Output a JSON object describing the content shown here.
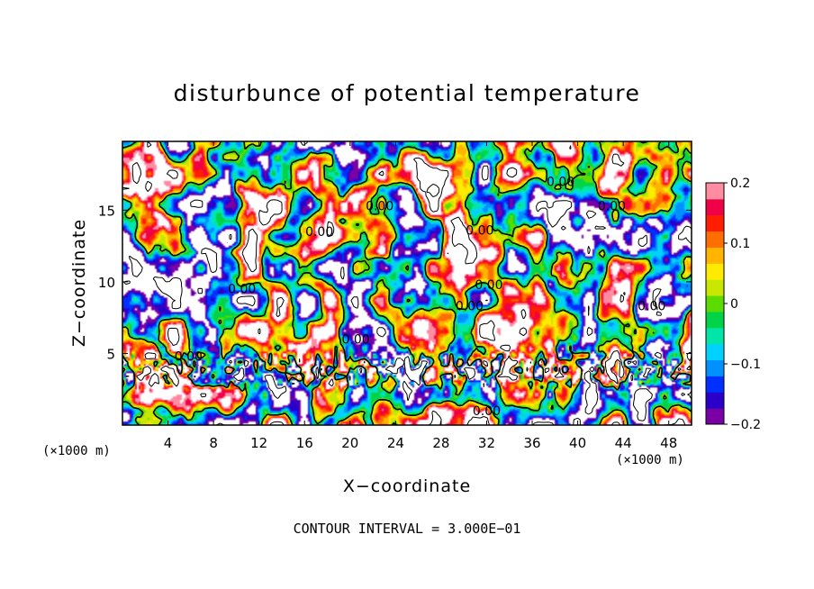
{
  "chart_data": {
    "type": "heatmap",
    "title": "disturbunce of potential temperature",
    "xlabel": "X−coordinate",
    "ylabel": "Z−coordinate",
    "x_unit": "(×1000 m)",
    "y_unit": "(×1000 m)",
    "xlim": [
      0,
      50
    ],
    "ylim": [
      0,
      19.8
    ],
    "x_ticks": [
      4,
      8,
      12,
      16,
      20,
      24,
      28,
      32,
      36,
      40,
      44,
      48
    ],
    "y_ticks": [
      5,
      10,
      15
    ],
    "colorbar": {
      "min": -0.2,
      "max": 0.2,
      "ticks": [
        0.2,
        0.1,
        0,
        -0.1,
        -0.2
      ],
      "tick_labels": [
        "0.2",
        "0.1",
        "0",
        "−0.1",
        "−0.2"
      ],
      "colors": [
        "#7a00a6",
        "#2a00c8",
        "#0030ff",
        "#0090ff",
        "#00d2ff",
        "#00e6a8",
        "#00d24a",
        "#5adc00",
        "#c8e600",
        "#ffeb00",
        "#ffb400",
        "#ff6e00",
        "#ff1e00",
        "#f00046",
        "#ff8ca0"
      ],
      "over_color": "#ffffff",
      "under_color": "#ffffff"
    },
    "contour_labels": [
      {
        "text": "0.00",
        "x": 5.8,
        "z": 4.5
      },
      {
        "text": "0.00",
        "x": 10.5,
        "z": 9.2
      },
      {
        "text": "0.00",
        "x": 17.3,
        "z": 13.2
      },
      {
        "text": "0.00",
        "x": 22.6,
        "z": 15.0
      },
      {
        "text": "0.00",
        "x": 20.5,
        "z": 5.7
      },
      {
        "text": "0.00",
        "x": 31.4,
        "z": 13.3
      },
      {
        "text": "0.00",
        "x": 32.2,
        "z": 9.5
      },
      {
        "text": "0.00",
        "x": 30.5,
        "z": 8.0
      },
      {
        "text": "0.00",
        "x": 38.5,
        "z": 16.7
      },
      {
        "text": "0.00",
        "x": 43.0,
        "z": 15.0
      },
      {
        "text": "0.00",
        "x": 46.5,
        "z": 8.0
      },
      {
        "text": "0.00",
        "x": 32.0,
        "z": 0.7
      }
    ],
    "grid": false,
    "legend": "right colorbar"
  },
  "footer": "CONTOUR INTERVAL = 3.000E−01"
}
